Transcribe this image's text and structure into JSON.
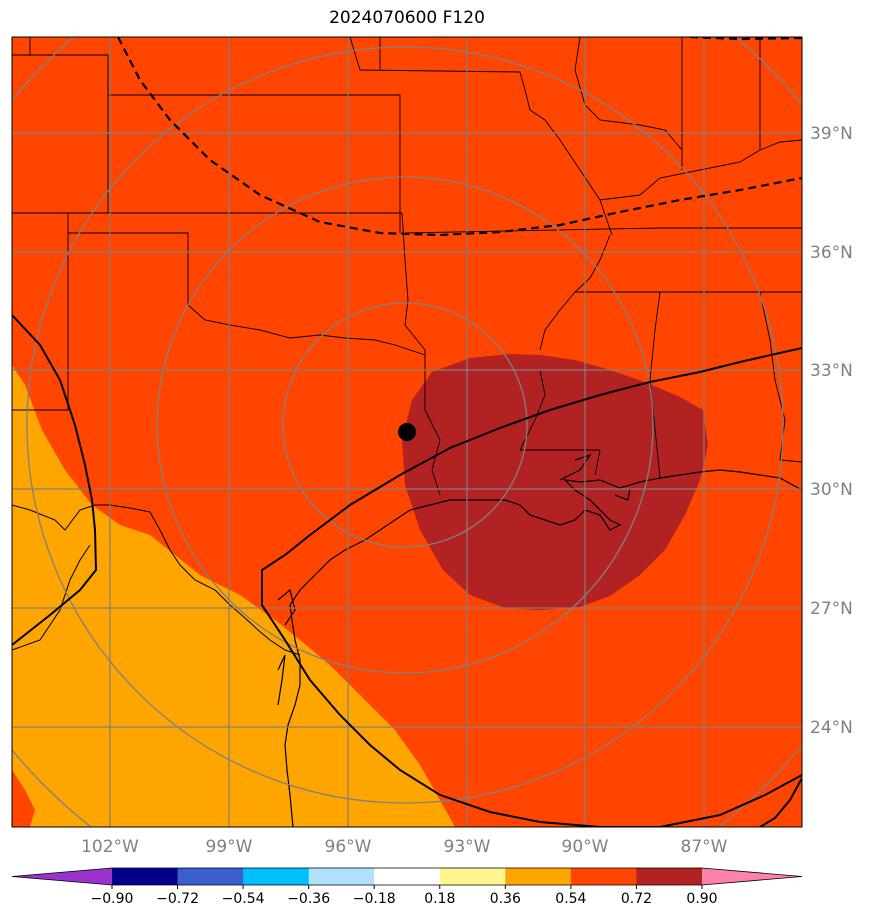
{
  "chart_data": {
    "type": "heatmap",
    "title": "2024070600 F120",
    "x_tick_labels": [
      "102°W",
      "99°W",
      "96°W",
      "93°W",
      "90°W",
      "87°W"
    ],
    "y_tick_labels": [
      "39°N",
      "36°N",
      "33°N",
      "30°N",
      "27°N",
      "24°N"
    ],
    "colorbar": {
      "ticks": [
        "−0.90",
        "−0.72",
        "−0.54",
        "−0.36",
        "−0.18",
        "0.18",
        "0.36",
        "0.54",
        "0.72",
        "0.90"
      ],
      "levels": [
        -0.9,
        -0.72,
        -0.54,
        -0.36,
        -0.18,
        0.18,
        0.36,
        0.54,
        0.72,
        0.9
      ],
      "colors": [
        "#9a32cd",
        "#00008b",
        "#3a5fcd",
        "#00bfff",
        "#b0e2ff",
        "#ffffff",
        "#fff68f",
        "#ffa500",
        "#ff4500",
        "#b22222",
        "#ff82ab"
      ],
      "extend": "both"
    },
    "fields": [
      {
        "range": [
          0.36,
          0.54
        ],
        "color": "#ffa500"
      },
      {
        "range": [
          0.54,
          0.72
        ],
        "color": "#ff4500"
      },
      {
        "range": [
          0.72,
          0.9
        ],
        "color": "#b22222"
      }
    ],
    "marker": {
      "lon": -94.5,
      "lat": 31.5,
      "color": "#000000"
    },
    "grid": true
  }
}
